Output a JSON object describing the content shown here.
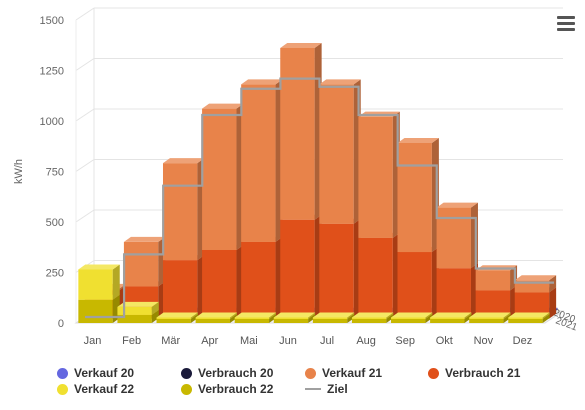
{
  "chart_data": {
    "type": "bar",
    "ylabel": "kW/h",
    "ylim": [
      0,
      1500
    ],
    "yticks": [
      "0",
      "250",
      "500",
      "750",
      "1000",
      "1250",
      "1500"
    ],
    "depth_labels": [
      "2020",
      "2021"
    ],
    "categories": [
      "Jan",
      "Feb",
      "Mär",
      "Apr",
      "Mai",
      "Jun",
      "Jul",
      "Aug",
      "Sep",
      "Okt",
      "Nov",
      "Dez"
    ],
    "grid": true,
    "legend_position": "bottom",
    "series": [
      {
        "name": "Verkauf 20",
        "color": "#6467e0",
        "values": [
          0,
          0,
          0,
          0,
          0,
          0,
          0,
          0,
          0,
          0,
          0,
          0
        ]
      },
      {
        "name": "Verbrauch 20",
        "color": "#1a1a3a",
        "values": [
          0,
          0,
          0,
          0,
          0,
          0,
          0,
          0,
          0,
          0,
          0,
          0
        ]
      },
      {
        "name": "Verkauf 21",
        "color": "#e8834a",
        "values": [
          0,
          220,
          480,
          700,
          780,
          850,
          690,
          600,
          540,
          300,
          100,
          60
        ]
      },
      {
        "name": "Verbrauch 21",
        "color": "#e0501a",
        "values": [
          140,
          160,
          290,
          340,
          380,
          490,
          470,
          400,
          330,
          250,
          140,
          130
        ]
      },
      {
        "name": "Verkauf 22",
        "color": "#f0e030",
        "values": [
          150,
          40,
          0,
          0,
          0,
          0,
          0,
          0,
          0,
          0,
          0,
          0
        ]
      },
      {
        "name": "Verbrauch 22",
        "color": "#c8b800",
        "values": [
          115,
          40,
          20,
          20,
          20,
          20,
          20,
          20,
          20,
          20,
          20,
          20
        ]
      },
      {
        "name": "Ziel",
        "color": "#a0a0a0",
        "type": "step-line",
        "values": [
          0,
          310,
          650,
          1000,
          1130,
          1180,
          1140,
          1000,
          750,
          490,
          240,
          170
        ]
      }
    ]
  },
  "legend": [
    {
      "label": "Verkauf 20",
      "color": "#6467e0",
      "shape": "circle"
    },
    {
      "label": "Verbrauch 20",
      "color": "#1a1a3a",
      "shape": "circle"
    },
    {
      "label": "Verkauf 21",
      "color": "#e8834a",
      "shape": "circle"
    },
    {
      "label": "Verbrauch 21",
      "color": "#e0501a",
      "shape": "circle"
    },
    {
      "label": "Verkauf 22",
      "color": "#f0e030",
      "shape": "circle"
    },
    {
      "label": "Verbrauch 22",
      "color": "#c8b800",
      "shape": "circle"
    },
    {
      "label": "Ziel",
      "color": "#a0a0a0",
      "shape": "line"
    }
  ],
  "menu_icon": "hamburger-menu-icon"
}
